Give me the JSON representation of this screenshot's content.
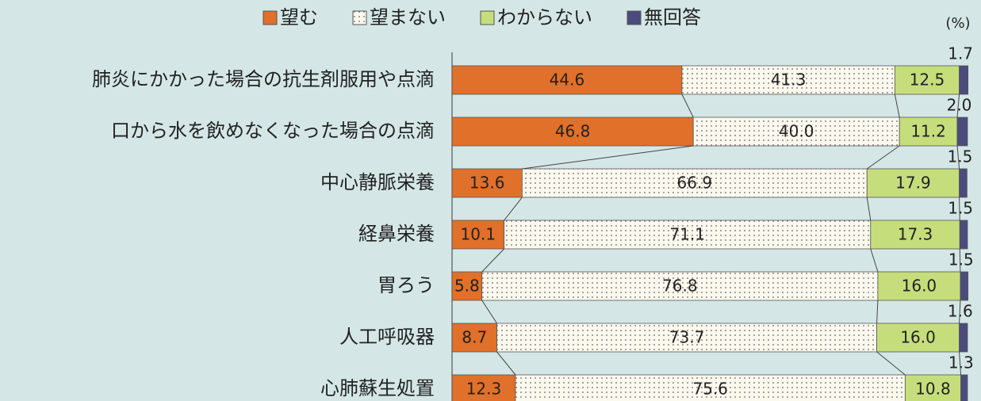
{
  "chart_data": {
    "type": "stacked-bar-horizontal",
    "unit": "(%)",
    "categories": [
      "肺炎にかかった場合の抗生剤服用や点滴",
      "口から水を飲めなくなった場合の点滴",
      "中心静脈栄養",
      "経鼻栄養",
      "胃ろう",
      "人工呼吸器",
      "心肺蘇生処置"
    ],
    "xlim": [
      0,
      100
    ],
    "legend": "top",
    "series": [
      {
        "name": "望む",
        "color": "#e0702a",
        "values": [
          44.6,
          46.8,
          13.6,
          10.1,
          5.8,
          8.7,
          12.3
        ],
        "value_labels": [
          "44.6",
          "46.8",
          "13.6",
          "10.1",
          "5.8",
          "8.7",
          "12.3"
        ]
      },
      {
        "name": "望まない",
        "color": "#fbf8ee",
        "pattern": "dots",
        "values": [
          41.3,
          40.0,
          66.9,
          71.1,
          76.8,
          73.7,
          75.6
        ],
        "value_labels": [
          "41.3",
          "40.0",
          "66.9",
          "71.1",
          "76.8",
          "73.7",
          "75.6"
        ]
      },
      {
        "name": "わからない",
        "color": "#c6dd7c",
        "values": [
          12.5,
          11.2,
          17.9,
          17.3,
          16.0,
          16.0,
          10.8
        ],
        "value_labels": [
          "12.5",
          "11.2",
          "17.9",
          "17.3",
          "16.0",
          "16.0",
          "10.8"
        ]
      },
      {
        "name": "無回答",
        "color": "#4b4b7d",
        "values": [
          1.7,
          2.0,
          1.5,
          1.5,
          1.5,
          1.6,
          1.3
        ],
        "value_labels": [
          "1.7",
          "2.0",
          "1.5",
          "1.5",
          "1.5",
          "1.6",
          "1.3"
        ]
      }
    ]
  }
}
